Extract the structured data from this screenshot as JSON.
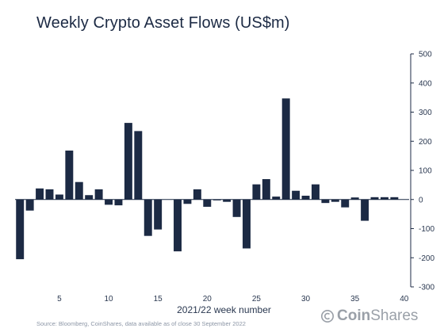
{
  "chart_data": {
    "type": "bar",
    "title": "Weekly Crypto Asset Flows (US$m)",
    "xlabel": "2021/22 week number",
    "ylabel": "",
    "ylim": [
      -300,
      500
    ],
    "yticks": [
      -300,
      -200,
      -100,
      0,
      100,
      200,
      300,
      400,
      500
    ],
    "xticks": [
      5,
      10,
      15,
      20,
      25,
      30,
      35,
      40
    ],
    "categories": [
      1,
      2,
      3,
      4,
      5,
      6,
      7,
      8,
      9,
      10,
      11,
      12,
      13,
      14,
      15,
      16,
      17,
      18,
      19,
      20,
      21,
      22,
      23,
      24,
      25,
      26,
      27,
      28,
      29,
      30,
      31,
      32,
      33,
      34,
      35,
      36,
      37,
      38,
      39,
      40
    ],
    "values": [
      -205,
      -38,
      38,
      35,
      17,
      168,
      60,
      15,
      35,
      -18,
      -20,
      263,
      235,
      -125,
      -103,
      0,
      -178,
      -15,
      35,
      -25,
      -3,
      -8,
      -60,
      -168,
      52,
      70,
      10,
      347,
      30,
      13,
      52,
      -12,
      -8,
      -27,
      7,
      -73,
      8,
      8,
      8,
      0
    ],
    "bar_color": "#1c2a44",
    "grid": false,
    "y_axis_position": "right"
  },
  "footer": {
    "source": "Source: Bloomberg, CoinShares, data available as of close 30 September 2022",
    "brand_prefix": "Coin",
    "brand_suffix": "Shares",
    "brand_icon": "coinshares-logo-icon"
  }
}
